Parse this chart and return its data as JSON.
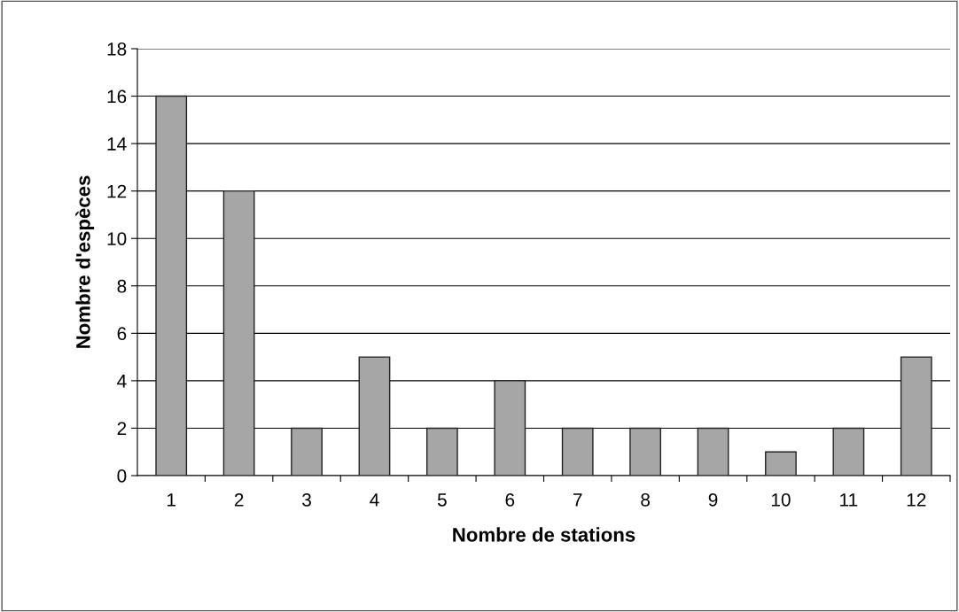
{
  "chart_data": {
    "type": "bar",
    "xlabel": "Nombre de stations",
    "ylabel": "Nombre d'espèces",
    "categories": [
      "1",
      "2",
      "3",
      "4",
      "5",
      "6",
      "7",
      "8",
      "9",
      "10",
      "11",
      "12"
    ],
    "values": [
      16,
      12,
      2,
      5,
      2,
      4,
      2,
      2,
      2,
      1,
      2,
      5
    ],
    "color": "#a6a6a6",
    "ylim": [
      0,
      18
    ],
    "yticks": [
      0,
      2,
      4,
      6,
      8,
      10,
      12,
      14,
      16,
      18
    ],
    "grid": "y",
    "legend": false
  }
}
